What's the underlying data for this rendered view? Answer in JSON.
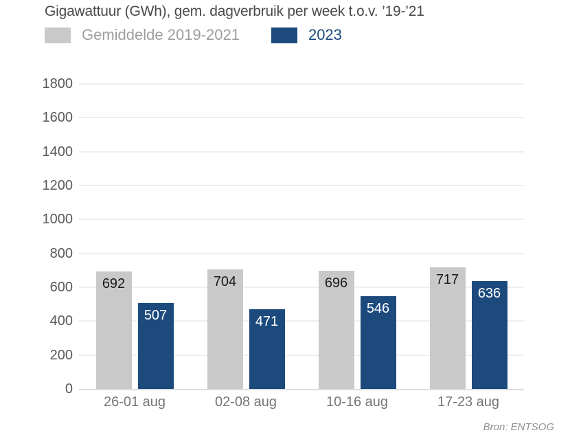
{
  "source": "Bron: ENTSOG",
  "chart_data": {
    "type": "bar",
    "title": "Gigawattuur (GWh), gem. dagverbruik per week t.o.v. ’19-’21",
    "categories": [
      "26-01 aug",
      "02-08 aug",
      "10-16 aug",
      "17-23 aug"
    ],
    "series": [
      {
        "name": "Gemiddelde 2019-2021",
        "color": "#c9c9c9",
        "value_label_color": "#1a1a1a",
        "legend_text_color": "#9e9e9e",
        "values": [
          692,
          704,
          696,
          717
        ]
      },
      {
        "name": "2023",
        "color": "#1c4a7d",
        "value_label_color": "#ffffff",
        "legend_text_color": "#1c4a7d",
        "values": [
          507,
          471,
          546,
          636
        ]
      }
    ],
    "xlabel": "",
    "ylabel": "",
    "ylim": [
      0,
      1800
    ],
    "ytick_step": 200,
    "grid": true,
    "legend_position": "top",
    "background": "#ffffff"
  }
}
